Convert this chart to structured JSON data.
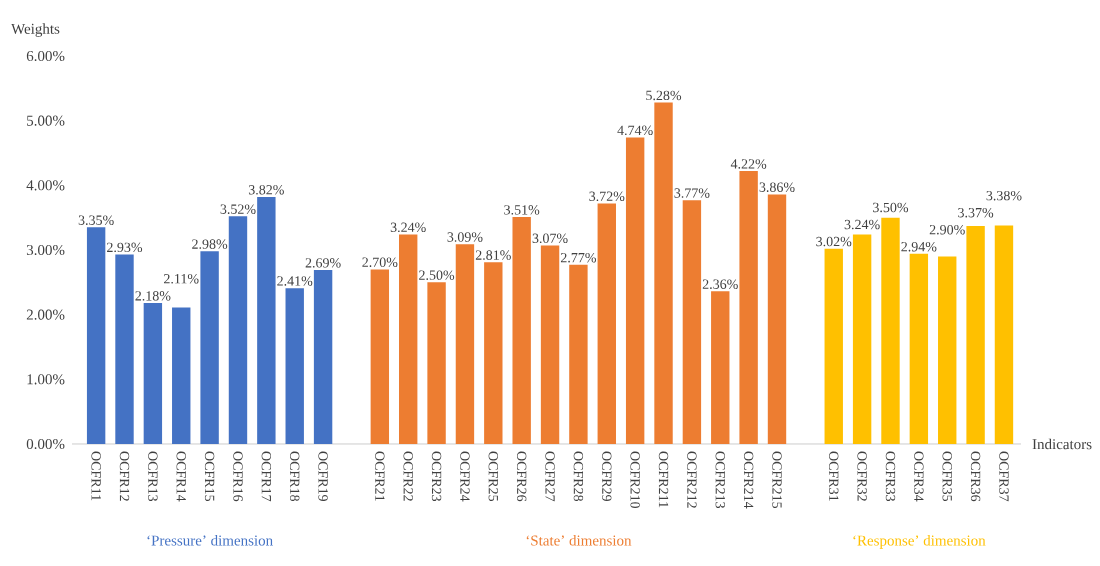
{
  "chart_data": {
    "type": "bar",
    "ylabel": "Weights",
    "xlabel": "Indicators",
    "categories": [
      "OCFR11",
      "OCFR12",
      "OCFR13",
      "OCFR14",
      "OCFR15",
      "OCFR16",
      "OCFR17",
      "OCFR18",
      "OCFR19",
      null,
      "OCFR21",
      "OCFR22",
      "OCFR23",
      "OCFR24",
      "OCFR25",
      "OCFR26",
      "OCFR27",
      "OCFR28",
      "OCFR29",
      "OCFR210",
      "OCFR211",
      "OCFR212",
      "OCFR213",
      "OCFR214",
      "OCFR215",
      null,
      "OCFR31",
      "OCFR32",
      "OCFR33",
      "OCFR34",
      "OCFR35",
      "OCFR36",
      "OCFR37"
    ],
    "series": [
      {
        "name": "‘Pressure’ dimension",
        "color": "#4472c4",
        "values": [
          3.35,
          2.93,
          2.18,
          2.11,
          2.98,
          3.52,
          3.82,
          2.41,
          2.69,
          null,
          null,
          null,
          null,
          null,
          null,
          null,
          null,
          null,
          null,
          null,
          null,
          null,
          null,
          null,
          null,
          null,
          null,
          null,
          null,
          null,
          null,
          null,
          null
        ],
        "value_labels": [
          "3.35%",
          "2.93%",
          "2.18%",
          "2.11%",
          "2.98%",
          "3.52%",
          "3.82%",
          "2.41%",
          "2.69%",
          null,
          null,
          null,
          null,
          null,
          null,
          null,
          null,
          null,
          null,
          null,
          null,
          null,
          null,
          null,
          null,
          null,
          null,
          null,
          null,
          null,
          null,
          null,
          null
        ]
      },
      {
        "name": "‘State’ dimension",
        "color": "#ed7d31",
        "values": [
          null,
          null,
          null,
          null,
          null,
          null,
          null,
          null,
          null,
          null,
          2.7,
          3.24,
          2.5,
          3.09,
          2.81,
          3.51,
          3.07,
          2.77,
          3.72,
          4.74,
          5.28,
          3.77,
          2.36,
          4.22,
          3.86,
          null,
          null,
          null,
          null,
          null,
          null,
          null,
          null
        ],
        "value_labels": [
          null,
          null,
          null,
          null,
          null,
          null,
          null,
          null,
          null,
          null,
          "2.70%",
          "3.24%",
          "2.50%",
          "3.09%",
          "2.81%",
          "3.51%",
          "3.07%",
          "2.77%",
          "3.72%",
          "4.74%",
          "5.28%",
          "3.77%",
          "2.36%",
          "4.22%",
          "3.86%",
          null,
          null,
          null,
          null,
          null,
          null,
          null,
          null
        ]
      },
      {
        "name": "‘Response’ dimension",
        "color": "#ffc000",
        "values": [
          null,
          null,
          null,
          null,
          null,
          null,
          null,
          null,
          null,
          null,
          null,
          null,
          null,
          null,
          null,
          null,
          null,
          null,
          null,
          null,
          null,
          null,
          null,
          null,
          null,
          null,
          3.02,
          3.24,
          3.5,
          2.94,
          2.9,
          3.37,
          3.38
        ],
        "value_labels": [
          null,
          null,
          null,
          null,
          null,
          null,
          null,
          null,
          null,
          null,
          null,
          null,
          null,
          null,
          null,
          null,
          null,
          null,
          null,
          null,
          null,
          null,
          null,
          null,
          null,
          null,
          "3.02%",
          "3.24%",
          "3.50%",
          "2.94%",
          "2.90%",
          "3.37%",
          "3.38%"
        ]
      }
    ],
    "ylim": [
      0,
      6
    ],
    "yticks": [
      {
        "value": 0,
        "label": "0.00%"
      },
      {
        "value": 1,
        "label": "1.00%"
      },
      {
        "value": 2,
        "label": "2.00%"
      },
      {
        "value": 3,
        "label": "3.00%"
      },
      {
        "value": 4,
        "label": "4.00%"
      },
      {
        "value": 5,
        "label": "5.00%"
      },
      {
        "value": 6,
        "label": "6.00%"
      }
    ]
  }
}
